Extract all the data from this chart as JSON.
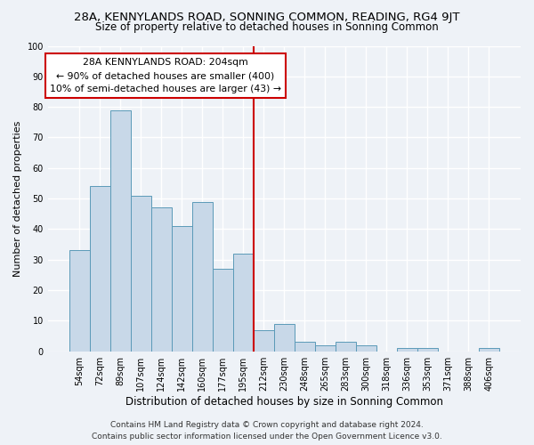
{
  "title": "28A, KENNYLANDS ROAD, SONNING COMMON, READING, RG4 9JT",
  "subtitle": "Size of property relative to detached houses in Sonning Common",
  "xlabel": "Distribution of detached houses by size in Sonning Common",
  "ylabel": "Number of detached properties",
  "footer_line1": "Contains HM Land Registry data © Crown copyright and database right 2024.",
  "footer_line2": "Contains public sector information licensed under the Open Government Licence v3.0.",
  "categories": [
    "54sqm",
    "72sqm",
    "89sqm",
    "107sqm",
    "124sqm",
    "142sqm",
    "160sqm",
    "177sqm",
    "195sqm",
    "212sqm",
    "230sqm",
    "248sqm",
    "265sqm",
    "283sqm",
    "300sqm",
    "318sqm",
    "336sqm",
    "353sqm",
    "371sqm",
    "388sqm",
    "406sqm"
  ],
  "values": [
    33,
    54,
    79,
    51,
    47,
    41,
    49,
    27,
    32,
    7,
    9,
    3,
    2,
    3,
    2,
    0,
    1,
    1,
    0,
    0,
    1
  ],
  "bar_color": "#c8d8e8",
  "bar_edge_color": "#5b9ab8",
  "vline_color": "#cc0000",
  "annotation_line1": "28A KENNYLANDS ROAD: 204sqm",
  "annotation_line2": "← 90% of detached houses are smaller (400)",
  "annotation_line3": "10% of semi-detached houses are larger (43) →",
  "annotation_box_color": "#ffffff",
  "annotation_box_edge": "#cc0000",
  "ylim": [
    0,
    100
  ],
  "yticks": [
    0,
    10,
    20,
    30,
    40,
    50,
    60,
    70,
    80,
    90,
    100
  ],
  "background_color": "#eef2f7",
  "grid_color": "#ffffff",
  "title_fontsize": 9.5,
  "subtitle_fontsize": 8.5,
  "ylabel_fontsize": 8,
  "xlabel_fontsize": 8.5,
  "tick_fontsize": 7,
  "footer_fontsize": 6.5
}
